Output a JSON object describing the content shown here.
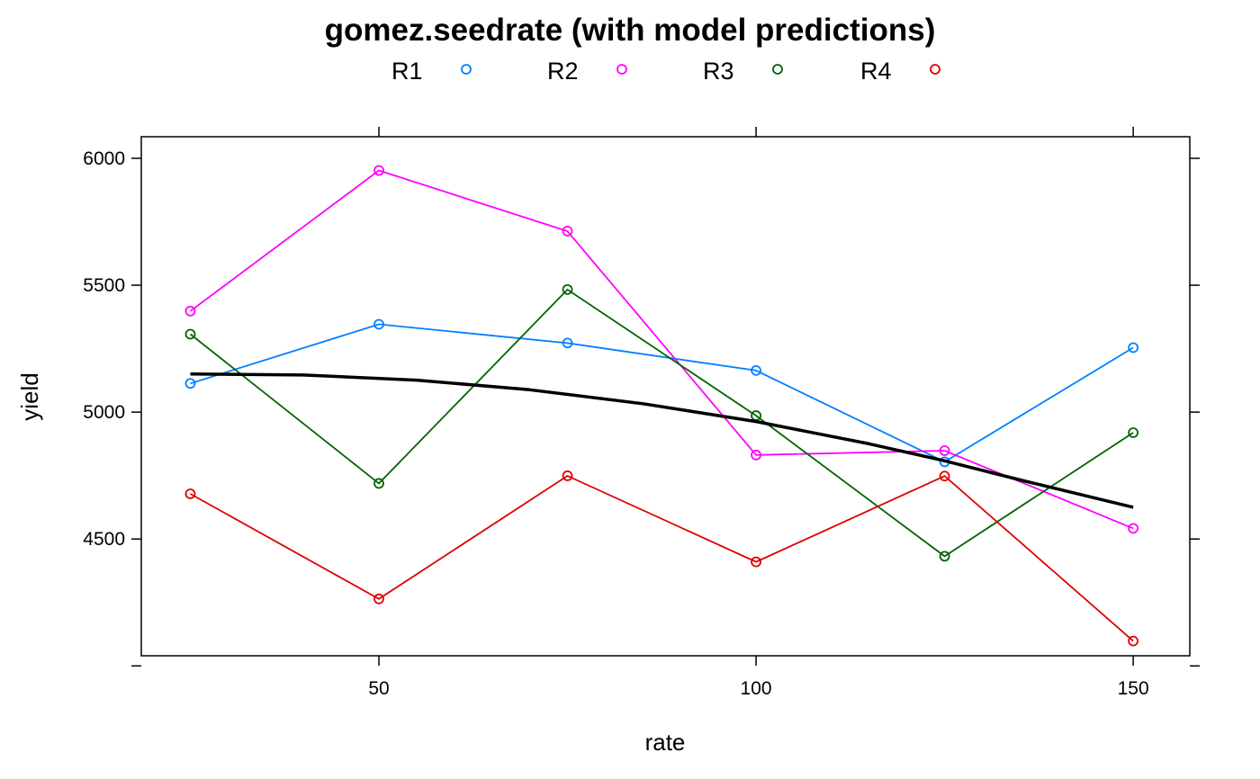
{
  "chart_data": {
    "type": "line",
    "title": "gomez.seedrate (with model predictions)",
    "xlabel": "rate",
    "ylabel": "yield",
    "xlim": [
      18.5,
      157.5
    ],
    "ylim": [
      4040,
      6085
    ],
    "x_ticks": [
      50,
      100,
      150
    ],
    "y_ticks": [
      4000,
      4500,
      5000,
      5500,
      6000
    ],
    "y_tick_labels": [
      "",
      "4500",
      "5000",
      "5500",
      "6000"
    ],
    "grid": false,
    "legend_position": "top",
    "x": [
      25,
      50,
      75,
      100,
      125,
      150
    ],
    "series": [
      {
        "name": "R1",
        "color": "#0080ff",
        "values": [
          5113,
          5346,
          5272,
          5164,
          4804,
          5254
        ]
      },
      {
        "name": "R2",
        "color": "#ff00ff",
        "values": [
          5398,
          5952,
          5713,
          4831,
          4848,
          4542
        ]
      },
      {
        "name": "R3",
        "color": "#006400",
        "values": [
          5307,
          4719,
          5483,
          4986,
          4432,
          4919
        ]
      },
      {
        "name": "R4",
        "color": "#e00000",
        "values": [
          4678,
          4264,
          4749,
          4410,
          4748,
          4098
        ]
      }
    ],
    "prediction": {
      "color": "#000000",
      "x": [
        25,
        40,
        55,
        70,
        85,
        100,
        115,
        125,
        135,
        150
      ],
      "values": [
        5150,
        5146,
        5126,
        5088,
        5033,
        4963,
        4875,
        4808,
        4733,
        4625
      ]
    }
  }
}
